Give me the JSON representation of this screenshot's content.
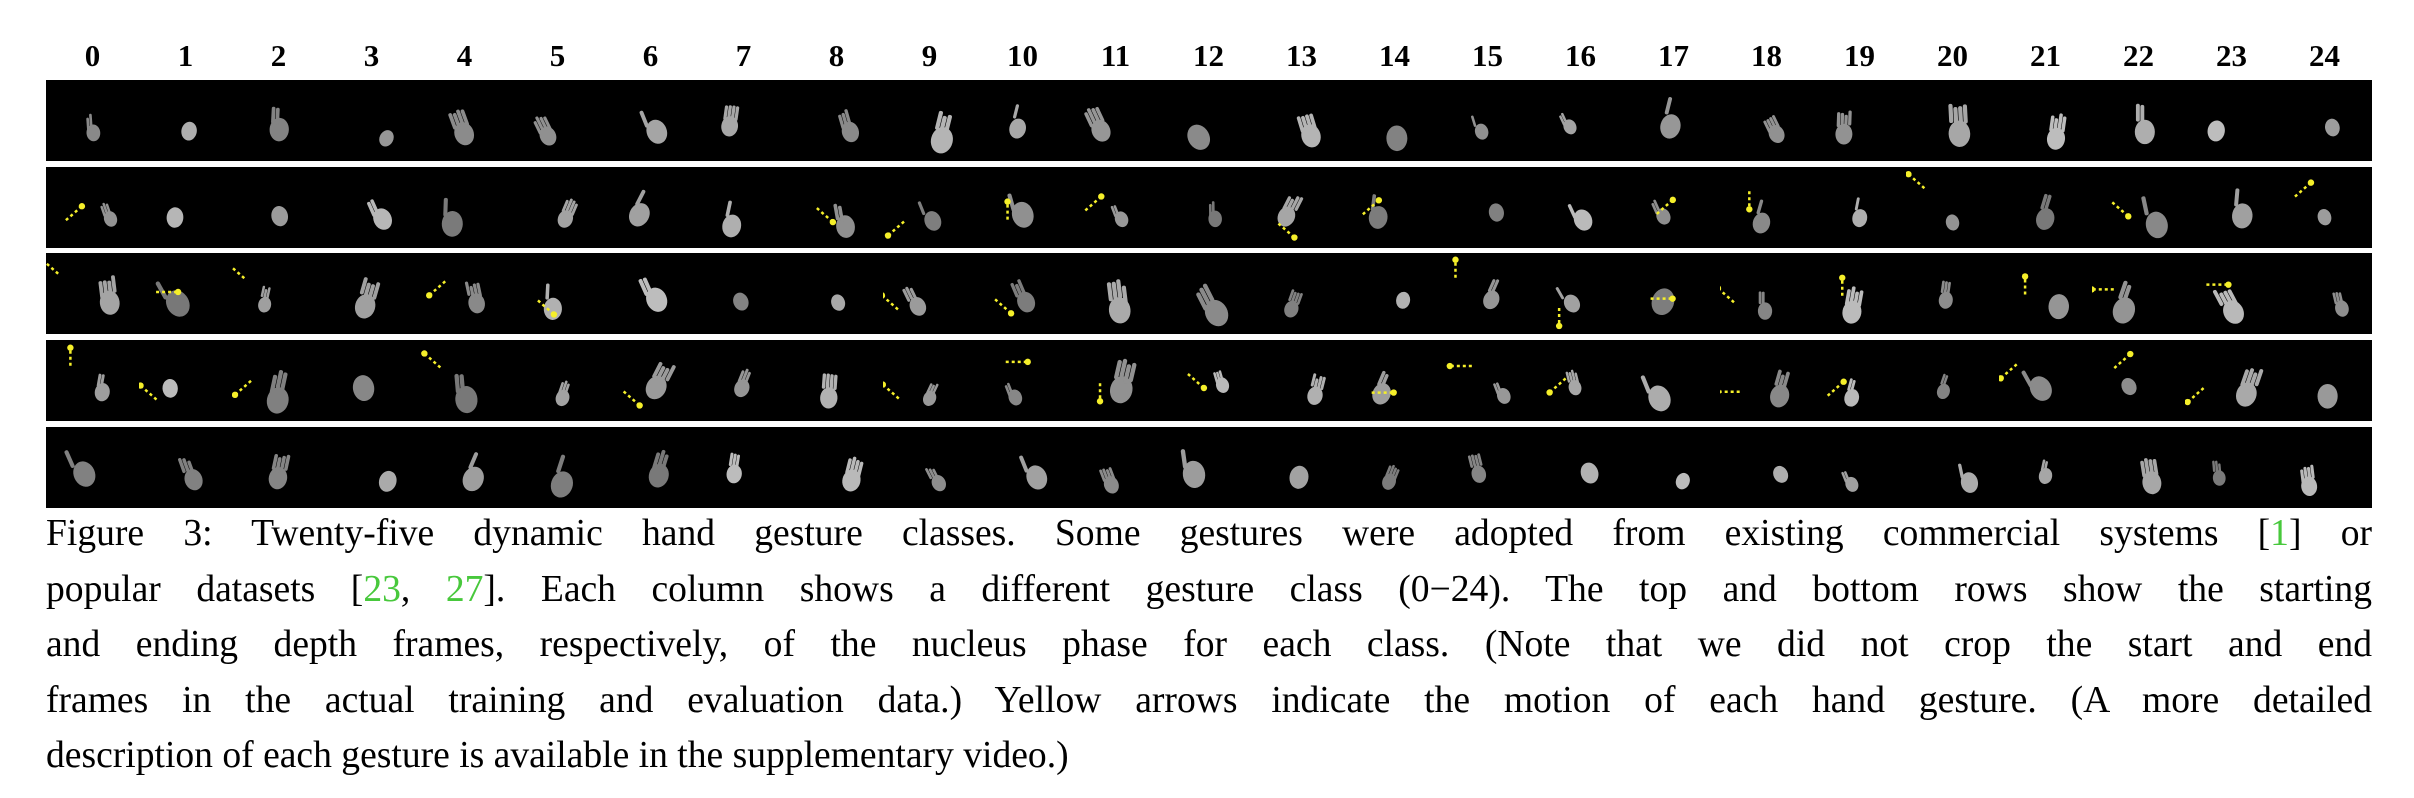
{
  "figure": {
    "columns": [
      "0",
      "1",
      "2",
      "3",
      "4",
      "5",
      "6",
      "7",
      "8",
      "9",
      "10",
      "11",
      "12",
      "13",
      "14",
      "15",
      "16",
      "17",
      "18",
      "19",
      "20",
      "21",
      "22",
      "23",
      "24"
    ],
    "rows": 5,
    "arrow_color": "#f5ef2a",
    "hand_color": "#9a9a9a",
    "background": "#000000"
  },
  "caption": {
    "label": "Figure 3:",
    "text_1": " Twenty-five dynamic hand gesture classes. Some gestures were adopted from existing commercial systems [",
    "cite_1": "1",
    "text_2": "] or",
    "text_3": "popular datasets [",
    "cite_2": "23",
    "sep": ", ",
    "cite_3": "27",
    "text_4": "]. Each column shows a different gesture class (0−24). The top and bottom rows show the starting",
    "text_5": "and ending depth frames, respectively, of the nucleus phase for each class.  (Note that we did not crop the start and end",
    "text_6": "frames in the actual training and evaluation data.) Yellow arrows indicate the motion of each hand gesture. (A more detailed",
    "text_7": "description of each gesture is available in the supplementary video.)"
  }
}
